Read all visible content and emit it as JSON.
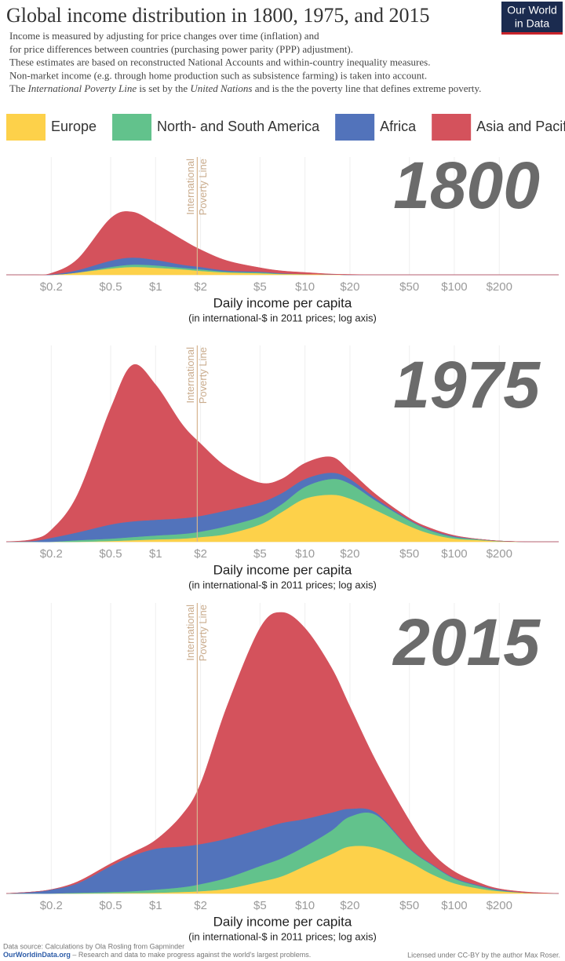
{
  "header": {
    "title": "Global income distribution in 1800, 1975, and 2015",
    "subtitle": [
      "Income is measured by adjusting for price changes over time (inflation) and",
      "for price differences between countries (purchasing power parity (PPP) adjustment).",
      "These estimates are based on reconstructed National Accounts and within-country inequality measures.",
      "Non-market income (e.g. through home production such as subsistence farming) is taken into account.",
      [
        {
          "text": "The "
        },
        {
          "text": "International Poverty Line",
          "italic": true
        },
        {
          "text": " is set by the "
        },
        {
          "text": "United Nations",
          "italic": true
        },
        {
          "text": " and is the the poverty line that defines extreme poverty."
        }
      ]
    ],
    "logo": [
      "Our World",
      "in Data"
    ]
  },
  "chart_data": [
    {
      "type": "area",
      "stacked": true,
      "title": "1800",
      "x_log": true,
      "xlim": [
        0.1,
        500
      ],
      "xticks": [
        {
          "value": 0.2,
          "label": "$0.2"
        },
        {
          "value": 0.5,
          "label": "$0.5"
        },
        {
          "value": 1,
          "label": "$1"
        },
        {
          "value": 2,
          "label": "$2"
        },
        {
          "value": 5,
          "label": "$5"
        },
        {
          "value": 10,
          "label": "$10"
        },
        {
          "value": 20,
          "label": "$20"
        },
        {
          "value": 50,
          "label": "$50"
        },
        {
          "value": 100,
          "label": "$100"
        },
        {
          "value": 200,
          "label": "$200"
        }
      ],
      "ylim": [
        0,
        150
      ],
      "grid": true,
      "x_label": "Daily income per capita",
      "x_sublabel": "(in international-$ in 2011 prices; log axis)",
      "poverty_line": {
        "value": 1.9,
        "label": [
          "International",
          "Poverty Line"
        ]
      },
      "x": [
        0.1,
        0.15,
        0.2,
        0.3,
        0.5,
        0.7,
        1,
        1.5,
        2,
        3,
        5,
        7,
        10,
        15,
        20,
        30,
        50,
        70,
        100,
        150,
        200,
        300,
        500
      ],
      "series": [
        {
          "name": "Europe",
          "color": "#fdd14a",
          "values": [
            0,
            0,
            0,
            3,
            8,
            10,
            9,
            7,
            5,
            3,
            2,
            1,
            1,
            0.5,
            0,
            0,
            0,
            0,
            0,
            0,
            0,
            0,
            0
          ]
        },
        {
          "name": "North- and South America",
          "color": "#62c28c",
          "values": [
            0,
            0,
            0,
            0,
            2,
            3,
            3,
            2,
            2,
            1,
            1,
            0.5,
            0,
            0,
            0,
            0,
            0,
            0,
            0,
            0,
            0,
            0,
            0
          ]
        },
        {
          "name": "Africa",
          "color": "#5273bb",
          "values": [
            0,
            0,
            0.5,
            3,
            8,
            9,
            7,
            4,
            3,
            1.5,
            1,
            0.5,
            0,
            0,
            0,
            0,
            0,
            0,
            0,
            0,
            0,
            0,
            0
          ]
        },
        {
          "name": "Asia and Pacific",
          "color": "#d4525c",
          "values": [
            0,
            0,
            1.5,
            14,
            54,
            58,
            46,
            32,
            22,
            12.5,
            5,
            3,
            2,
            0.5,
            0.5,
            0,
            0,
            0,
            0,
            0,
            0,
            0,
            0
          ]
        }
      ]
    },
    {
      "type": "area",
      "stacked": true,
      "title": "1975",
      "x_log": true,
      "xlim": [
        0.1,
        500
      ],
      "xticks": [
        {
          "value": 0.2,
          "label": "$0.2"
        },
        {
          "value": 0.5,
          "label": "$0.5"
        },
        {
          "value": 1,
          "label": "$1"
        },
        {
          "value": 2,
          "label": "$2"
        },
        {
          "value": 5,
          "label": "$5"
        },
        {
          "value": 10,
          "label": "$10"
        },
        {
          "value": 20,
          "label": "$20"
        },
        {
          "value": 50,
          "label": "$50"
        },
        {
          "value": 100,
          "label": "$100"
        },
        {
          "value": 200,
          "label": "$200"
        }
      ],
      "ylim": [
        0,
        250
      ],
      "grid": true,
      "x_label": "Daily income per capita",
      "x_sublabel": "(in international-$ in 2011 prices; log axis)",
      "poverty_line": {
        "value": 1.9,
        "label": [
          "International",
          "Poverty Line"
        ]
      },
      "x": [
        0.1,
        0.15,
        0.2,
        0.3,
        0.5,
        0.7,
        1,
        1.5,
        2,
        3,
        5,
        7,
        10,
        15,
        20,
        30,
        50,
        70,
        100,
        150,
        200,
        300,
        500
      ],
      "series": [
        {
          "name": "Europe",
          "color": "#fdd14a",
          "values": [
            0,
            0,
            0,
            0,
            1,
            2,
            3,
            4,
            6,
            10,
            22,
            38,
            55,
            60,
            55,
            40,
            20,
            10,
            4,
            2,
            0.5,
            0,
            0
          ]
        },
        {
          "name": "North- and South America",
          "color": "#62c28c",
          "values": [
            0,
            0,
            0,
            2,
            3,
            4,
            5,
            6,
            7,
            10,
            10,
            10,
            15,
            20,
            19,
            12,
            7,
            4,
            2,
            1,
            0.5,
            0,
            0
          ]
        },
        {
          "name": "Africa",
          "color": "#5273bb",
          "values": [
            0,
            1,
            5,
            10,
            18,
            20,
            20,
            20,
            20,
            20,
            18,
            14,
            10,
            8,
            6,
            3,
            1,
            1,
            1,
            0,
            0,
            0,
            0
          ]
        },
        {
          "name": "Asia and Pacific",
          "color": "#d4525c",
          "values": [
            0,
            2,
            10,
            48,
            148,
            199,
            172,
            120,
            92,
            55,
            25,
            18,
            20,
            20,
            10,
            5,
            2,
            2,
            1,
            0,
            0,
            0,
            0
          ]
        }
      ]
    },
    {
      "type": "area",
      "stacked": true,
      "title": "2015",
      "x_log": true,
      "xlim": [
        0.1,
        500
      ],
      "xticks": [
        {
          "value": 0.2,
          "label": "$0.2"
        },
        {
          "value": 0.5,
          "label": "$0.5"
        },
        {
          "value": 1,
          "label": "$1"
        },
        {
          "value": 2,
          "label": "$2"
        },
        {
          "value": 5,
          "label": "$5"
        },
        {
          "value": 10,
          "label": "$10"
        },
        {
          "value": 20,
          "label": "$20"
        },
        {
          "value": 50,
          "label": "$50"
        },
        {
          "value": 100,
          "label": "$100"
        },
        {
          "value": 200,
          "label": "$200"
        }
      ],
      "ylim": [
        0,
        370
      ],
      "grid": true,
      "x_label": "Daily income per capita",
      "x_sublabel": "(in international-$ in 2011 prices; log axis)",
      "poverty_line": {
        "value": 1.9,
        "label": [
          "International",
          "Poverty Line"
        ]
      },
      "x": [
        0.1,
        0.15,
        0.2,
        0.3,
        0.5,
        0.7,
        1,
        1.5,
        2,
        3,
        5,
        7,
        10,
        15,
        20,
        30,
        50,
        70,
        100,
        150,
        200,
        300,
        500
      ],
      "series": [
        {
          "name": "Europe",
          "color": "#fdd14a",
          "values": [
            0,
            0,
            0,
            0,
            0.5,
            0.7,
            1,
            2,
            3,
            6,
            15,
            22,
            35,
            50,
            60,
            58,
            40,
            25,
            13,
            6,
            3,
            1,
            0
          ]
        },
        {
          "name": "North- and South America",
          "color": "#62c28c",
          "values": [
            0,
            0,
            0,
            1,
            1.5,
            2.3,
            4,
            6,
            9,
            14,
            20,
            23,
            25,
            30,
            38,
            42,
            17,
            12,
            6,
            3,
            1,
            0,
            0
          ]
        },
        {
          "name": "Africa",
          "color": "#5273bb",
          "values": [
            0,
            2,
            5,
            12,
            33,
            45,
            52,
            52,
            51,
            50,
            47,
            45,
            35,
            23,
            10,
            3,
            1,
            1,
            1,
            1,
            1,
            0,
            0
          ]
        },
        {
          "name": "Asia and Pacific",
          "color": "#d4525c",
          "values": [
            0,
            0,
            0,
            2,
            3,
            4,
            11,
            40,
            77,
            168,
            256,
            268,
            243,
            185,
            130,
            65,
            35,
            15,
            8,
            3,
            1,
            1,
            0
          ]
        }
      ]
    }
  ],
  "footer": {
    "source": "Data source: Calculations by Ola Rosling from Gapminder",
    "site": "OurWorldinData.org",
    "tagline": " – Research and data to make progress against the world's largest problems.",
    "license": "Licensed under CC-BY by the author Max Roser."
  }
}
